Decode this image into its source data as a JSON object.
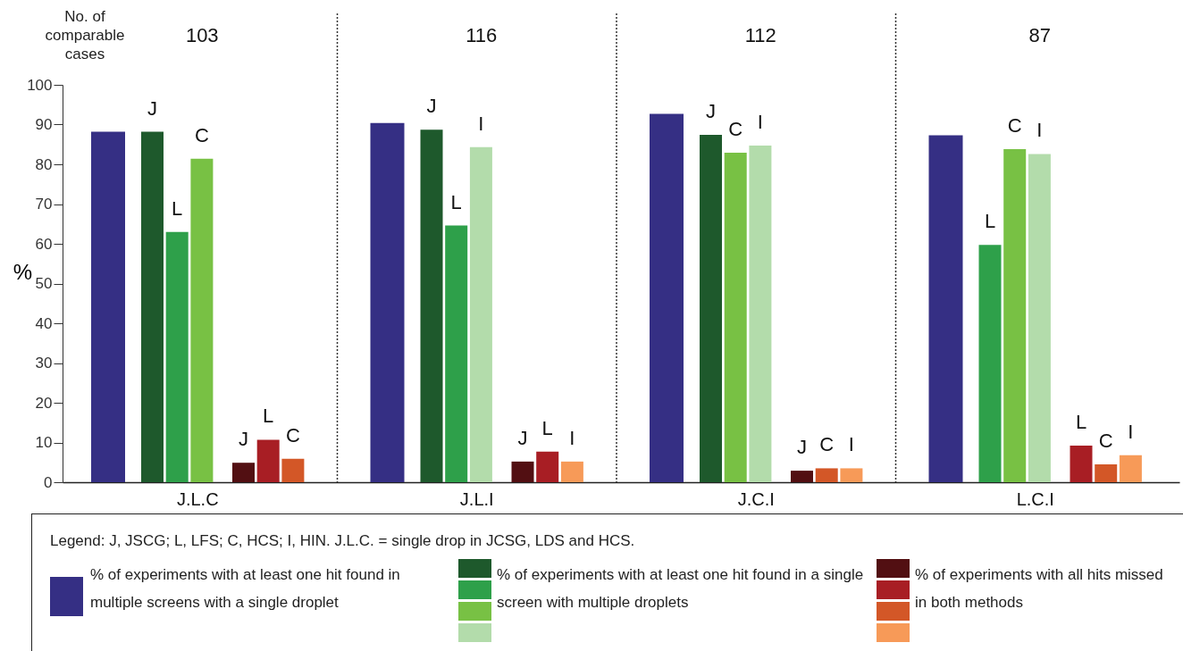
{
  "chart_data": {
    "type": "bar",
    "categories": [
      "J.L.C",
      "J.L.I",
      "J.C.I",
      "L.C.I"
    ],
    "ylabel": "%",
    "ylim": [
      0,
      100
    ],
    "yticks": [
      0,
      10,
      20,
      30,
      40,
      50,
      60,
      70,
      80,
      90,
      100
    ],
    "legend": "bottom",
    "legend_title": "Legend: J, JSCG; L, LFS; C, HCS; I, HIN. J.L.C. = single drop in JCSG, LDS and HCS.",
    "series": [
      {
        "name": "% of experiments with at least one hit found in multiple screens with a single droplet",
        "color": "#352f84",
        "values": [
          88.2,
          90.4,
          92.7,
          87.3
        ]
      },
      {
        "color": "#1e592c",
        "values": [
          88.2,
          88.7,
          87.4,
          null
        ],
        "value_labels": [
          "J",
          "J",
          "J",
          null
        ]
      },
      {
        "color": "#2ea04a",
        "values": [
          63.0,
          64.6,
          null,
          59.7
        ],
        "value_labels": [
          "L",
          "L",
          null,
          "L"
        ]
      },
      {
        "color": "#78c144",
        "values": [
          81.4,
          null,
          82.9,
          83.8
        ],
        "value_labels": [
          "C",
          null,
          "C",
          "C"
        ]
      },
      {
        "color": "#b3dcab",
        "values": [
          null,
          84.3,
          84.7,
          82.6
        ],
        "value_labels": [
          null,
          "I",
          "I",
          "I"
        ]
      },
      {
        "color": "#520f12",
        "values": [
          4.9,
          5.2,
          2.9,
          null
        ],
        "value_labels": [
          "J",
          "J",
          "J",
          null
        ]
      },
      {
        "color": "#a81e24",
        "values": [
          10.7,
          7.7,
          null,
          9.2
        ],
        "value_labels": [
          "L",
          "L",
          null,
          "L"
        ]
      },
      {
        "color": "#d35727",
        "values": [
          5.9,
          null,
          3.5,
          4.5
        ],
        "value_labels": [
          "C",
          null,
          "C",
          "C"
        ]
      },
      {
        "color": "#f79a58",
        "values": [
          null,
          5.2,
          3.5,
          6.8
        ],
        "value_labels": [
          null,
          "I",
          "I",
          "I"
        ]
      }
    ],
    "annotations": [
      "No. of comparable cases",
      "103",
      "116",
      "112",
      "87",
      "% of experiments with at least one hit found in a single screen with multiple droplets",
      "% of experiments with all hits missed in both methods"
    ]
  }
}
